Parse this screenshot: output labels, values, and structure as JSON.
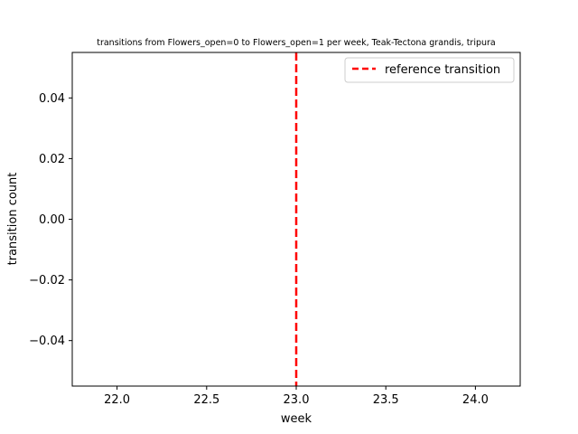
{
  "chart_data": {
    "type": "line",
    "title": "transitions from Flowers_open=0 to Flowers_open=1 per week, Teak-Tectona grandis, tripura",
    "xlabel": "week",
    "ylabel": "transition count",
    "xlim": [
      21.75,
      24.25
    ],
    "ylim": [
      -0.055,
      0.055
    ],
    "xticks": [
      22.0,
      22.5,
      23.0,
      23.5,
      24.0
    ],
    "xtick_labels": [
      "22.0",
      "22.5",
      "23.0",
      "23.5",
      "24.0"
    ],
    "yticks": [
      0.04,
      0.02,
      0.0,
      -0.02,
      -0.04
    ],
    "ytick_labels": [
      "0.04",
      "0.02",
      "0.00",
      "−0.02",
      "−0.04"
    ],
    "grid": false,
    "legend_position": "top-right",
    "series": [
      {
        "name": "reference transition",
        "kind": "vertical-line",
        "x": 23.0,
        "color": "#ff0000",
        "style": "dashed"
      }
    ]
  }
}
